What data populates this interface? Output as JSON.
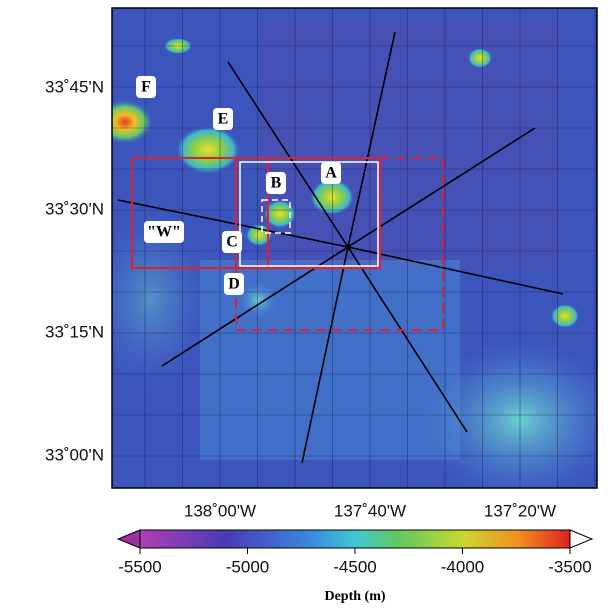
{
  "map": {
    "lat_labels": [
      "33˚45'N",
      "33˚30'N",
      "33˚15'N",
      "33˚00'N"
    ],
    "lon_labels": [
      "138˚00'W",
      "137˚40'W",
      "137˚20'W"
    ],
    "sites": [
      "F",
      "E",
      "A",
      "B",
      "\"W\"",
      "C",
      "D"
    ]
  },
  "colorbar": {
    "title": "Depth (m)",
    "lim": [
      -5500,
      -3500
    ],
    "ticks": [
      -5500,
      -5000,
      -4500,
      -4000,
      -3500
    ]
  }
}
